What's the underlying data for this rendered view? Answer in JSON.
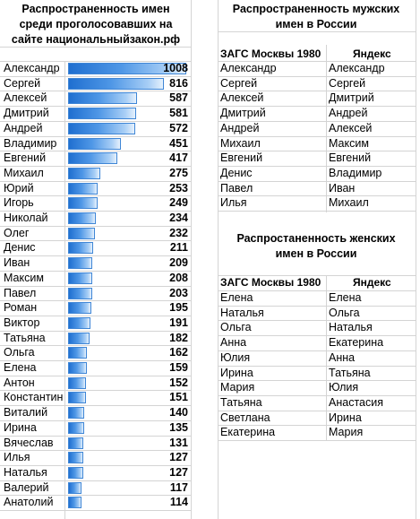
{
  "left_title": [
    "Распространенность имен",
    "среди проголосовавших на",
    "сайте национальныйзакон.рф"
  ],
  "names": [
    {
      "name": "Александр",
      "count": 1008
    },
    {
      "name": "Сергей",
      "count": 816
    },
    {
      "name": "Алексей",
      "count": 587
    },
    {
      "name": "Дмитрий",
      "count": 581
    },
    {
      "name": "Андрей",
      "count": 572
    },
    {
      "name": "Владимир",
      "count": 451
    },
    {
      "name": "Евгений",
      "count": 417
    },
    {
      "name": "Михаил",
      "count": 275
    },
    {
      "name": "Юрий",
      "count": 253
    },
    {
      "name": "Игорь",
      "count": 249
    },
    {
      "name": "Николай",
      "count": 234
    },
    {
      "name": "Олег",
      "count": 232
    },
    {
      "name": "Денис",
      "count": 211
    },
    {
      "name": "Иван",
      "count": 209
    },
    {
      "name": "Максим",
      "count": 208
    },
    {
      "name": "Павел",
      "count": 203
    },
    {
      "name": "Роман",
      "count": 195
    },
    {
      "name": "Виктор",
      "count": 191
    },
    {
      "name": "Татьяна",
      "count": 182
    },
    {
      "name": "Ольга",
      "count": 162
    },
    {
      "name": "Елена",
      "count": 159
    },
    {
      "name": "Антон",
      "count": 152
    },
    {
      "name": "Константин",
      "count": 151
    },
    {
      "name": "Виталий",
      "count": 140
    },
    {
      "name": "Ирина",
      "count": 135
    },
    {
      "name": "Вячеслав",
      "count": 131
    },
    {
      "name": "Илья",
      "count": 127
    },
    {
      "name": "Наталья",
      "count": 127
    },
    {
      "name": "Валерий",
      "count": 117
    },
    {
      "name": "Анатолий",
      "count": 114
    }
  ],
  "male": {
    "title": [
      "Распространенность мужских",
      "имен в России"
    ],
    "col1": "ЗАГС Москвы 1980",
    "col2": "Яндекс",
    "rows": [
      [
        "Александр",
        "Александр"
      ],
      [
        "Сергей",
        "Сергей"
      ],
      [
        "Алексей",
        "Дмитрий"
      ],
      [
        "Дмитрий",
        "Андрей"
      ],
      [
        "Андрей",
        "Алексей"
      ],
      [
        "Михаил",
        "Максим"
      ],
      [
        "Евгений",
        "Евгений"
      ],
      [
        "Денис",
        "Владимир"
      ],
      [
        "Павел",
        "Иван"
      ],
      [
        "Илья",
        "Михаил"
      ]
    ]
  },
  "female": {
    "title": [
      "Распростаненность женских",
      "имен в России"
    ],
    "col1": "ЗАГС Москвы 1980",
    "col2": "Яндекс",
    "rows": [
      [
        "Елена",
        "Елена"
      ],
      [
        "Наталья",
        "Ольга"
      ],
      [
        "Ольга",
        "Наталья"
      ],
      [
        "Анна",
        "Екатерина"
      ],
      [
        "Юлия",
        "Анна"
      ],
      [
        "Ирина",
        "Татьяна"
      ],
      [
        "Мария",
        "Юлия"
      ],
      [
        "Татьяна",
        "Анастасия"
      ],
      [
        "Светлана",
        "Ирина"
      ],
      [
        "Екатерина",
        "Мария"
      ]
    ]
  },
  "colors": {
    "bar": "#3f86d6",
    "grid": "#d4d4d4"
  }
}
